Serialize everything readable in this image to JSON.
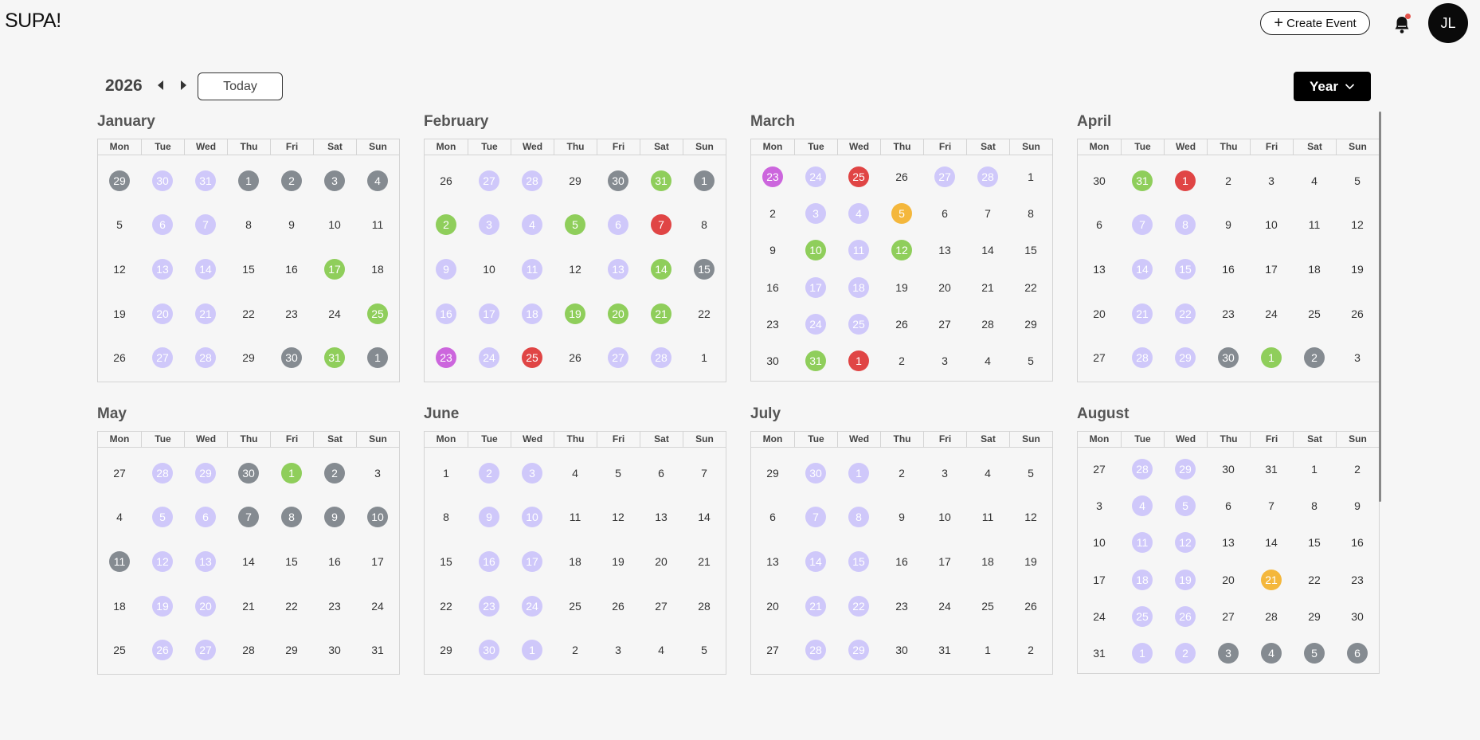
{
  "header": {
    "logo": "SUPA!",
    "create_label": "Create Event",
    "avatar_initials": "JL"
  },
  "toolbar": {
    "year": "2026",
    "today_label": "Today",
    "view_label": "Year"
  },
  "weekdays": [
    "Mon",
    "Tue",
    "Wed",
    "Thu",
    "Fri",
    "Sat",
    "Sun"
  ],
  "colors": {
    "lavender": "#cfc8fa",
    "gray": "#858b91",
    "green": "#8fce5b",
    "red": "#e04545",
    "pink": "#cc66dd",
    "orange": "#f4b73c"
  },
  "months": [
    {
      "name": "January",
      "weeks": [
        [
          [
            "29",
            "gray"
          ],
          [
            "30",
            "lav"
          ],
          [
            "31",
            "lav"
          ],
          [
            "1",
            "gray"
          ],
          [
            "2",
            "gray"
          ],
          [
            "3",
            "gray"
          ],
          [
            "4",
            "gray"
          ]
        ],
        [
          [
            "5",
            ""
          ],
          [
            "6",
            "lav"
          ],
          [
            "7",
            "lav"
          ],
          [
            "8",
            ""
          ],
          [
            "9",
            ""
          ],
          [
            "10",
            ""
          ],
          [
            "11",
            ""
          ]
        ],
        [
          [
            "12",
            ""
          ],
          [
            "13",
            "lav"
          ],
          [
            "14",
            "lav"
          ],
          [
            "15",
            ""
          ],
          [
            "16",
            ""
          ],
          [
            "17",
            "green"
          ],
          [
            "18",
            ""
          ]
        ],
        [
          [
            "19",
            ""
          ],
          [
            "20",
            "lav"
          ],
          [
            "21",
            "lav"
          ],
          [
            "22",
            ""
          ],
          [
            "23",
            ""
          ],
          [
            "24",
            ""
          ],
          [
            "25",
            "green"
          ]
        ],
        [
          [
            "26",
            ""
          ],
          [
            "27",
            "lav"
          ],
          [
            "28",
            "lav"
          ],
          [
            "29",
            ""
          ],
          [
            "30",
            "gray"
          ],
          [
            "31",
            "green"
          ],
          [
            "1",
            "gray"
          ]
        ]
      ]
    },
    {
      "name": "February",
      "weeks": [
        [
          [
            "26",
            ""
          ],
          [
            "27",
            "lav"
          ],
          [
            "28",
            "lav"
          ],
          [
            "29",
            ""
          ],
          [
            "30",
            "gray"
          ],
          [
            "31",
            "green"
          ],
          [
            "1",
            "gray"
          ]
        ],
        [
          [
            "2",
            "green"
          ],
          [
            "3",
            "lav"
          ],
          [
            "4",
            "lav"
          ],
          [
            "5",
            "green"
          ],
          [
            "6",
            "lav"
          ],
          [
            "7",
            "red"
          ],
          [
            "8",
            ""
          ]
        ],
        [
          [
            "9",
            "lav"
          ],
          [
            "10",
            ""
          ],
          [
            "11",
            "lav"
          ],
          [
            "12",
            ""
          ],
          [
            "13",
            "lav"
          ],
          [
            "14",
            "green"
          ],
          [
            "15",
            "gray"
          ]
        ],
        [
          [
            "16",
            "lav"
          ],
          [
            "17",
            "lav"
          ],
          [
            "18",
            "lav"
          ],
          [
            "19",
            "green"
          ],
          [
            "20",
            "green"
          ],
          [
            "21",
            "green"
          ],
          [
            "22",
            ""
          ]
        ],
        [
          [
            "23",
            "pink"
          ],
          [
            "24",
            "lav"
          ],
          [
            "25",
            "red"
          ],
          [
            "26",
            ""
          ],
          [
            "27",
            "lav"
          ],
          [
            "28",
            "lav"
          ],
          [
            "1",
            ""
          ]
        ]
      ]
    },
    {
      "name": "March",
      "weeks": [
        [
          [
            "23",
            "pink"
          ],
          [
            "24",
            "lav"
          ],
          [
            "25",
            "red"
          ],
          [
            "26",
            ""
          ],
          [
            "27",
            "lav"
          ],
          [
            "28",
            "lav"
          ],
          [
            "1",
            ""
          ]
        ],
        [
          [
            "2",
            ""
          ],
          [
            "3",
            "lav"
          ],
          [
            "4",
            "lav"
          ],
          [
            "5",
            "orange"
          ],
          [
            "6",
            ""
          ],
          [
            "7",
            ""
          ],
          [
            "8",
            ""
          ]
        ],
        [
          [
            "9",
            ""
          ],
          [
            "10",
            "green"
          ],
          [
            "11",
            "lav"
          ],
          [
            "12",
            "green"
          ],
          [
            "13",
            ""
          ],
          [
            "14",
            ""
          ],
          [
            "15",
            ""
          ]
        ],
        [
          [
            "16",
            ""
          ],
          [
            "17",
            "lav"
          ],
          [
            "18",
            "lav"
          ],
          [
            "19",
            ""
          ],
          [
            "20",
            ""
          ],
          [
            "21",
            ""
          ],
          [
            "22",
            ""
          ]
        ],
        [
          [
            "23",
            ""
          ],
          [
            "24",
            "lav"
          ],
          [
            "25",
            "lav"
          ],
          [
            "26",
            ""
          ],
          [
            "27",
            ""
          ],
          [
            "28",
            ""
          ],
          [
            "29",
            ""
          ]
        ],
        [
          [
            "30",
            ""
          ],
          [
            "31",
            "green"
          ],
          [
            "1",
            "red"
          ],
          [
            "2",
            ""
          ],
          [
            "3",
            ""
          ],
          [
            "4",
            ""
          ],
          [
            "5",
            ""
          ]
        ]
      ]
    },
    {
      "name": "April",
      "weeks": [
        [
          [
            "30",
            ""
          ],
          [
            "31",
            "green"
          ],
          [
            "1",
            "red"
          ],
          [
            "2",
            ""
          ],
          [
            "3",
            ""
          ],
          [
            "4",
            ""
          ],
          [
            "5",
            ""
          ]
        ],
        [
          [
            "6",
            ""
          ],
          [
            "7",
            "lav"
          ],
          [
            "8",
            "lav"
          ],
          [
            "9",
            ""
          ],
          [
            "10",
            ""
          ],
          [
            "11",
            ""
          ],
          [
            "12",
            ""
          ]
        ],
        [
          [
            "13",
            ""
          ],
          [
            "14",
            "lav"
          ],
          [
            "15",
            "lav"
          ],
          [
            "16",
            ""
          ],
          [
            "17",
            ""
          ],
          [
            "18",
            ""
          ],
          [
            "19",
            ""
          ]
        ],
        [
          [
            "20",
            ""
          ],
          [
            "21",
            "lav"
          ],
          [
            "22",
            "lav"
          ],
          [
            "23",
            ""
          ],
          [
            "24",
            ""
          ],
          [
            "25",
            ""
          ],
          [
            "26",
            ""
          ]
        ],
        [
          [
            "27",
            ""
          ],
          [
            "28",
            "lav"
          ],
          [
            "29",
            "lav"
          ],
          [
            "30",
            "gray"
          ],
          [
            "1",
            "green"
          ],
          [
            "2",
            "gray"
          ],
          [
            "3",
            ""
          ]
        ]
      ]
    },
    {
      "name": "May",
      "weeks": [
        [
          [
            "27",
            ""
          ],
          [
            "28",
            "lav"
          ],
          [
            "29",
            "lav"
          ],
          [
            "30",
            "gray"
          ],
          [
            "1",
            "green"
          ],
          [
            "2",
            "gray"
          ],
          [
            "3",
            ""
          ]
        ],
        [
          [
            "4",
            ""
          ],
          [
            "5",
            "lav"
          ],
          [
            "6",
            "lav"
          ],
          [
            "7",
            "gray"
          ],
          [
            "8",
            "gray"
          ],
          [
            "9",
            "gray"
          ],
          [
            "10",
            "gray"
          ]
        ],
        [
          [
            "11",
            "gray"
          ],
          [
            "12",
            "lav"
          ],
          [
            "13",
            "lav"
          ],
          [
            "14",
            ""
          ],
          [
            "15",
            ""
          ],
          [
            "16",
            ""
          ],
          [
            "17",
            ""
          ]
        ],
        [
          [
            "18",
            ""
          ],
          [
            "19",
            "lav"
          ],
          [
            "20",
            "lav"
          ],
          [
            "21",
            ""
          ],
          [
            "22",
            ""
          ],
          [
            "23",
            ""
          ],
          [
            "24",
            ""
          ]
        ],
        [
          [
            "25",
            ""
          ],
          [
            "26",
            "lav"
          ],
          [
            "27",
            "lav"
          ],
          [
            "28",
            ""
          ],
          [
            "29",
            ""
          ],
          [
            "30",
            ""
          ],
          [
            "31",
            ""
          ]
        ]
      ]
    },
    {
      "name": "June",
      "weeks": [
        [
          [
            "1",
            ""
          ],
          [
            "2",
            "lav"
          ],
          [
            "3",
            "lav"
          ],
          [
            "4",
            ""
          ],
          [
            "5",
            ""
          ],
          [
            "6",
            ""
          ],
          [
            "7",
            ""
          ]
        ],
        [
          [
            "8",
            ""
          ],
          [
            "9",
            "lav"
          ],
          [
            "10",
            "lav"
          ],
          [
            "11",
            ""
          ],
          [
            "12",
            ""
          ],
          [
            "13",
            ""
          ],
          [
            "14",
            ""
          ]
        ],
        [
          [
            "15",
            ""
          ],
          [
            "16",
            "lav"
          ],
          [
            "17",
            "lav"
          ],
          [
            "18",
            ""
          ],
          [
            "19",
            ""
          ],
          [
            "20",
            ""
          ],
          [
            "21",
            ""
          ]
        ],
        [
          [
            "22",
            ""
          ],
          [
            "23",
            "lav"
          ],
          [
            "24",
            "lav"
          ],
          [
            "25",
            ""
          ],
          [
            "26",
            ""
          ],
          [
            "27",
            ""
          ],
          [
            "28",
            ""
          ]
        ],
        [
          [
            "29",
            ""
          ],
          [
            "30",
            "lav"
          ],
          [
            "1",
            "lav"
          ],
          [
            "2",
            ""
          ],
          [
            "3",
            ""
          ],
          [
            "4",
            ""
          ],
          [
            "5",
            ""
          ]
        ]
      ]
    },
    {
      "name": "July",
      "weeks": [
        [
          [
            "29",
            ""
          ],
          [
            "30",
            "lav"
          ],
          [
            "1",
            "lav"
          ],
          [
            "2",
            ""
          ],
          [
            "3",
            ""
          ],
          [
            "4",
            ""
          ],
          [
            "5",
            ""
          ]
        ],
        [
          [
            "6",
            ""
          ],
          [
            "7",
            "lav"
          ],
          [
            "8",
            "lav"
          ],
          [
            "9",
            ""
          ],
          [
            "10",
            ""
          ],
          [
            "11",
            ""
          ],
          [
            "12",
            ""
          ]
        ],
        [
          [
            "13",
            ""
          ],
          [
            "14",
            "lav"
          ],
          [
            "15",
            "lav"
          ],
          [
            "16",
            ""
          ],
          [
            "17",
            ""
          ],
          [
            "18",
            ""
          ],
          [
            "19",
            ""
          ]
        ],
        [
          [
            "20",
            ""
          ],
          [
            "21",
            "lav"
          ],
          [
            "22",
            "lav"
          ],
          [
            "23",
            ""
          ],
          [
            "24",
            ""
          ],
          [
            "25",
            ""
          ],
          [
            "26",
            ""
          ]
        ],
        [
          [
            "27",
            ""
          ],
          [
            "28",
            "lav"
          ],
          [
            "29",
            "lav"
          ],
          [
            "30",
            ""
          ],
          [
            "31",
            ""
          ],
          [
            "1",
            ""
          ],
          [
            "2",
            ""
          ]
        ]
      ]
    },
    {
      "name": "August",
      "weeks": [
        [
          [
            "27",
            ""
          ],
          [
            "28",
            "lav"
          ],
          [
            "29",
            "lav"
          ],
          [
            "30",
            ""
          ],
          [
            "31",
            ""
          ],
          [
            "1",
            ""
          ],
          [
            "2",
            ""
          ]
        ],
        [
          [
            "3",
            ""
          ],
          [
            "4",
            "lav"
          ],
          [
            "5",
            "lav"
          ],
          [
            "6",
            ""
          ],
          [
            "7",
            ""
          ],
          [
            "8",
            ""
          ],
          [
            "9",
            ""
          ]
        ],
        [
          [
            "10",
            ""
          ],
          [
            "11",
            "lav"
          ],
          [
            "12",
            "lav"
          ],
          [
            "13",
            ""
          ],
          [
            "14",
            ""
          ],
          [
            "15",
            ""
          ],
          [
            "16",
            ""
          ]
        ],
        [
          [
            "17",
            ""
          ],
          [
            "18",
            "lav"
          ],
          [
            "19",
            "lav"
          ],
          [
            "20",
            ""
          ],
          [
            "21",
            "orange"
          ],
          [
            "22",
            ""
          ],
          [
            "23",
            ""
          ]
        ],
        [
          [
            "24",
            ""
          ],
          [
            "25",
            "lav"
          ],
          [
            "26",
            "lav"
          ],
          [
            "27",
            ""
          ],
          [
            "28",
            ""
          ],
          [
            "29",
            ""
          ],
          [
            "30",
            ""
          ]
        ],
        [
          [
            "31",
            ""
          ],
          [
            "1",
            "lav"
          ],
          [
            "2",
            "lav"
          ],
          [
            "3",
            "gray"
          ],
          [
            "4",
            "gray"
          ],
          [
            "5",
            "gray"
          ],
          [
            "6",
            "gray"
          ]
        ]
      ]
    }
  ]
}
